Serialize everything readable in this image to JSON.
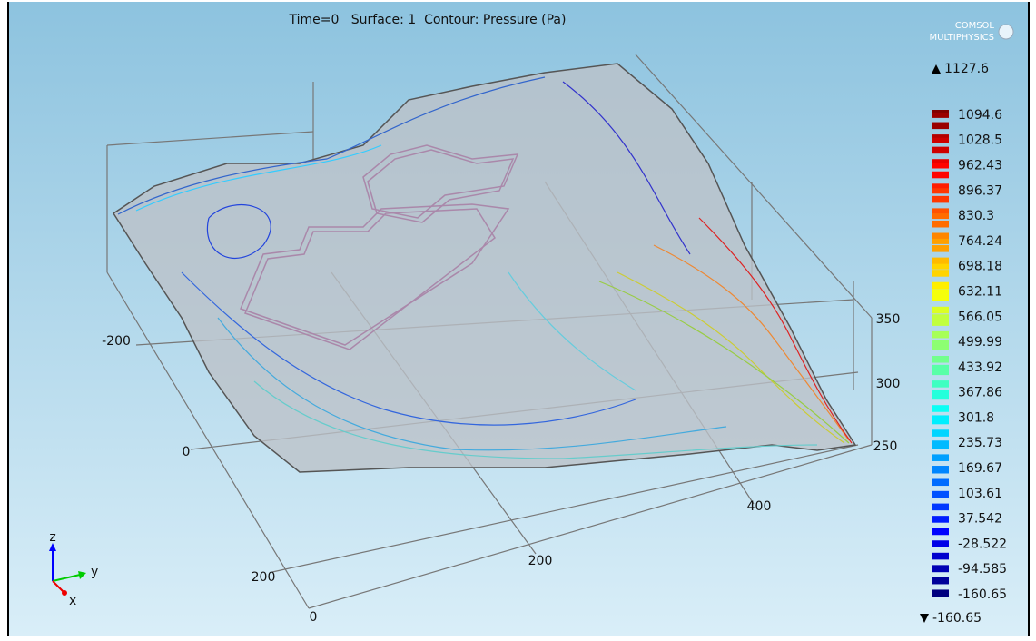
{
  "header": {
    "title": "Time=0   Surface: 1  Contour: Pressure (Pa)",
    "logo": [
      "COMSOL",
      "MULTIPHYSICS"
    ]
  },
  "colorbar": {
    "max": 1127.6,
    "min": -160.65,
    "levels": [
      1094.6,
      1028.5,
      962.43,
      896.37,
      830.3,
      764.24,
      698.18,
      632.11,
      566.05,
      499.99,
      433.92,
      367.86,
      301.8,
      235.73,
      169.67,
      103.61,
      37.542,
      -28.522,
      -94.585,
      -160.65
    ]
  },
  "axes": {
    "x_ticks": [
      -200,
      0,
      200
    ],
    "y_ticks": [
      0,
      200,
      400
    ],
    "z_ticks": [
      350,
      300,
      250
    ]
  },
  "triad": {
    "z": "z",
    "y": "y",
    "x": "x"
  }
}
